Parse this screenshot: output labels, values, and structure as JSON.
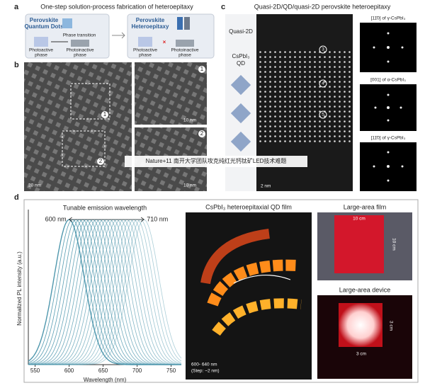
{
  "panel_a": {
    "label": "a",
    "title": "One-step solution-process fabrication of heteroepitaxy",
    "left_box": {
      "title": [
        "Perovskite",
        "Quantum Dots"
      ],
      "transition": "Phase transition",
      "phases": [
        [
          "Photoactive",
          "phase"
        ],
        [
          "Photoinactive",
          "phase"
        ]
      ]
    },
    "right_box": {
      "title": [
        "Perovskite",
        "Heteroepitaxy"
      ],
      "phases": [
        [
          "Photoactive",
          "phase"
        ],
        [
          "Photoinactive",
          "phase"
        ]
      ]
    }
  },
  "panel_b": {
    "label": "b",
    "scale_bars": [
      "20 nm",
      "10 nm",
      "10 nm"
    ],
    "markers": [
      "1",
      "2",
      "1",
      "2"
    ]
  },
  "panel_c": {
    "label": "c",
    "title": "Quasi-2D/QD/quasi-2D perovskite heteroepitaxy",
    "layers": [
      "Quasi-2D",
      "CsPbI₃",
      "QD"
    ],
    "scale_bar": "2 nm",
    "markers": [
      "3",
      "4",
      "5"
    ],
    "fft_labels": [
      "[11̄0] of γ-CsPbI₃",
      "[001] of α-CsPbI₃",
      "[11̄0] of γ-CsPbI₃"
    ]
  },
  "watermark": "Nature+11 南开大学团队攻克纯红光钙钛矿LED技术难题",
  "panel_d": {
    "label": "d",
    "photo": {
      "title": "CsPbI₃ heteroepitaxial QD film",
      "caption": [
        "600- 640 nm",
        "(Step: ~2 nm)"
      ]
    },
    "film": {
      "title": "Large-area film",
      "dims": [
        "10 cm",
        "10 cm"
      ]
    },
    "device": {
      "title": "Large-area device",
      "dims": [
        "3 cm",
        "3 cm"
      ]
    }
  },
  "chart_data": {
    "type": "spectra",
    "title": "Tunable emission wavelength",
    "annotations": [
      "600 nm",
      "710 nm"
    ],
    "x_label": "Wavelength (nm)",
    "y_label": "Normalized PL intensity (a.u.)",
    "xlim": [
      540,
      765
    ],
    "ylim": [
      0,
      1.05
    ],
    "xticks": [
      550,
      600,
      650,
      700,
      750
    ],
    "peaks": [
      600,
      605,
      610,
      615,
      620,
      625,
      630,
      635,
      640,
      645,
      650,
      655,
      660,
      665,
      670,
      675,
      680,
      685,
      690,
      695,
      700,
      705,
      710
    ],
    "color": "#4f97ad"
  }
}
